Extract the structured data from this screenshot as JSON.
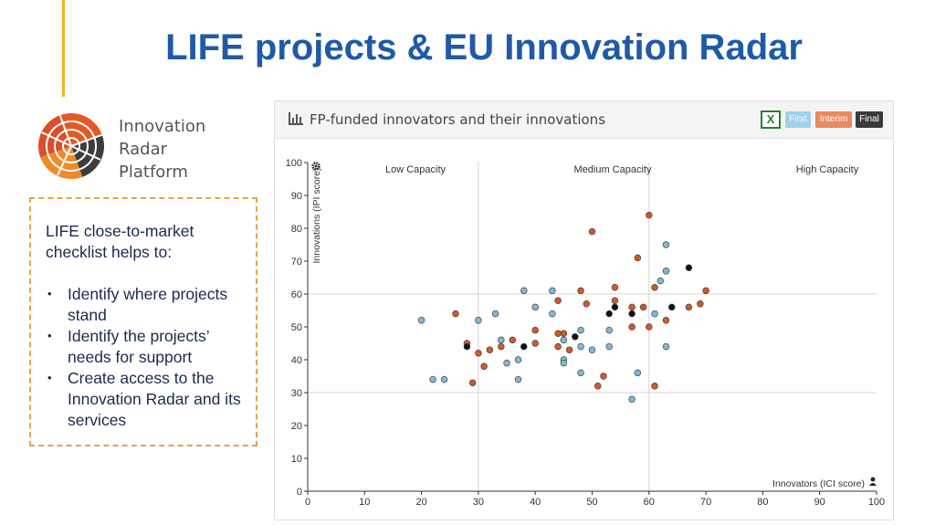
{
  "slide": {
    "title": "LIFE projects & EU Innovation Radar"
  },
  "logo": {
    "line1": "Innovation",
    "line2": "Radar",
    "line3": "Platform"
  },
  "checklist": {
    "intro": "LIFE close-to-market checklist helps to:",
    "items": [
      "Identify where projects stand",
      "Identify the projects’ needs for support",
      "Create access to the Innovation Radar and its services"
    ]
  },
  "panel": {
    "title": "FP-funded innovators and their innovations",
    "excel_icon": "excel-icon",
    "buttons": [
      "First",
      "Interim",
      "Final"
    ]
  },
  "colors": {
    "first": "#7db9d9",
    "interim": "#d2582a",
    "final": "#111111",
    "title": "#1f5aa8",
    "accent": "#f2b41d",
    "border": "#e8a24a"
  },
  "chart_data": {
    "type": "scatter",
    "title": "FP-funded innovators and their innovations",
    "xlabel": "Innovators (ICI score)",
    "ylabel": "Innovations (IPI score)",
    "xlim": [
      0,
      100
    ],
    "ylim": [
      0,
      100
    ],
    "x_ticks": [
      0,
      10,
      20,
      30,
      40,
      50,
      60,
      70,
      80,
      90,
      100
    ],
    "y_ticks": [
      0,
      10,
      20,
      30,
      40,
      50,
      60,
      70,
      80,
      90,
      100
    ],
    "grid": "reference lines at x=30, x=60, y=30, y=60",
    "region_labels": [
      "Low Capacity",
      "Medium Capacity",
      "High Capacity"
    ],
    "series": [
      {
        "name": "First",
        "color": "#7db9d9",
        "points": [
          [
            20,
            52
          ],
          [
            22,
            34
          ],
          [
            24,
            34
          ],
          [
            30,
            52
          ],
          [
            33,
            54
          ],
          [
            34,
            46
          ],
          [
            35,
            39
          ],
          [
            37,
            40
          ],
          [
            37,
            34
          ],
          [
            38,
            61
          ],
          [
            40,
            56
          ],
          [
            43,
            61
          ],
          [
            43,
            54
          ],
          [
            45,
            46
          ],
          [
            45,
            40
          ],
          [
            45,
            39
          ],
          [
            48,
            49
          ],
          [
            48,
            44
          ],
          [
            48,
            36
          ],
          [
            50,
            43
          ],
          [
            53,
            49
          ],
          [
            53,
            44
          ],
          [
            57,
            28
          ],
          [
            58,
            36
          ],
          [
            61,
            54
          ],
          [
            62,
            64
          ],
          [
            63,
            67
          ],
          [
            63,
            75
          ],
          [
            63,
            44
          ]
        ]
      },
      {
        "name": "Interim",
        "color": "#d2582a",
        "points": [
          [
            26,
            54
          ],
          [
            28,
            45
          ],
          [
            29,
            33
          ],
          [
            30,
            42
          ],
          [
            31,
            38
          ],
          [
            32,
            43
          ],
          [
            34,
            44
          ],
          [
            36,
            46
          ],
          [
            40,
            49
          ],
          [
            40,
            45
          ],
          [
            44,
            58
          ],
          [
            44,
            48
          ],
          [
            44,
            44
          ],
          [
            45,
            48
          ],
          [
            46,
            43
          ],
          [
            48,
            61
          ],
          [
            49,
            57
          ],
          [
            50,
            79
          ],
          [
            51,
            32
          ],
          [
            52,
            35
          ],
          [
            54,
            62
          ],
          [
            54,
            58
          ],
          [
            57,
            56
          ],
          [
            57,
            50
          ],
          [
            58,
            71
          ],
          [
            59,
            56
          ],
          [
            60,
            84
          ],
          [
            60,
            50
          ],
          [
            61,
            62
          ],
          [
            61,
            32
          ],
          [
            63,
            52
          ],
          [
            67,
            56
          ],
          [
            69,
            57
          ],
          [
            70,
            61
          ]
        ]
      },
      {
        "name": "Final",
        "color": "#111111",
        "points": [
          [
            28,
            44
          ],
          [
            38,
            44
          ],
          [
            47,
            47
          ],
          [
            53,
            54
          ],
          [
            54,
            56
          ],
          [
            57,
            54
          ],
          [
            64,
            56
          ],
          [
            67,
            68
          ]
        ]
      }
    ]
  }
}
